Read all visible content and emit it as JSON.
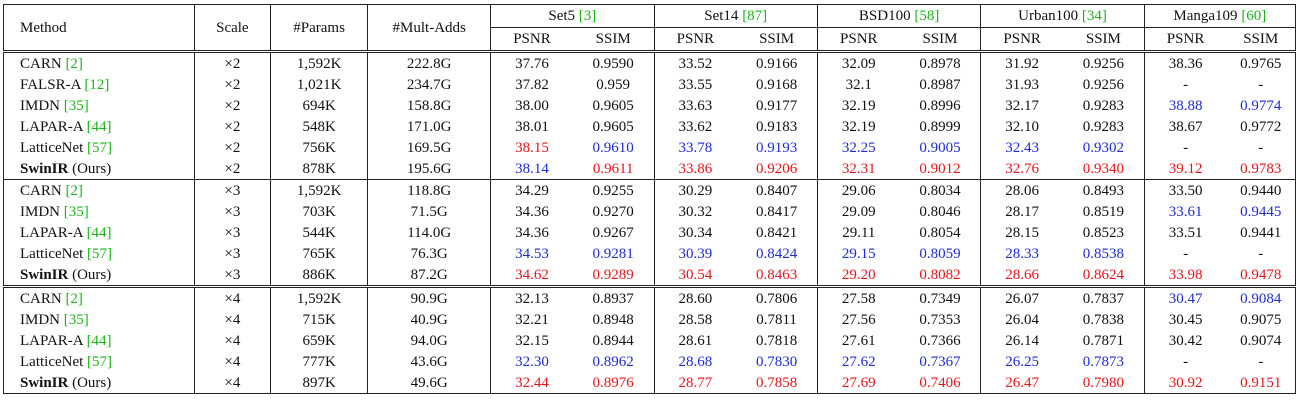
{
  "columns": {
    "method": "Method",
    "scale": "Scale",
    "params": "#Params",
    "mult_adds": "#Mult-Adds",
    "metric_psnr": "PSNR",
    "metric_ssim": "SSIM"
  },
  "datasets": [
    {
      "name": "Set5",
      "ref": "[3]"
    },
    {
      "name": "Set14",
      "ref": "[87]"
    },
    {
      "name": "BSD100",
      "ref": "[58]"
    },
    {
      "name": "Urban100",
      "ref": "[34]"
    },
    {
      "name": "Manga109",
      "ref": "[60]"
    }
  ],
  "colors": {
    "best": "#e8141b",
    "second": "#1f2bd6",
    "citation": "#1ab51a"
  },
  "groups": [
    {
      "rows": [
        {
          "method": "CARN",
          "ref": "[2]",
          "suffix": "",
          "bold": false,
          "scale": "×2",
          "params": "1,592K",
          "madds": "222.8G",
          "vals": [
            [
              "37.76",
              ""
            ],
            [
              "0.9590",
              ""
            ],
            [
              "33.52",
              ""
            ],
            [
              "0.9166",
              ""
            ],
            [
              "32.09",
              ""
            ],
            [
              "0.8978",
              ""
            ],
            [
              "31.92",
              ""
            ],
            [
              "0.9256",
              ""
            ],
            [
              "38.36",
              ""
            ],
            [
              "0.9765",
              ""
            ]
          ]
        },
        {
          "method": "FALSR-A",
          "ref": "[12]",
          "suffix": "",
          "bold": false,
          "scale": "×2",
          "params": "1,021K",
          "madds": "234.7G",
          "vals": [
            [
              "37.82",
              ""
            ],
            [
              "0.959",
              ""
            ],
            [
              "33.55",
              ""
            ],
            [
              "0.9168",
              ""
            ],
            [
              "32.1",
              ""
            ],
            [
              "0.8987",
              ""
            ],
            [
              "31.93",
              ""
            ],
            [
              "0.9256",
              ""
            ],
            [
              "-",
              ""
            ],
            [
              "-",
              ""
            ]
          ]
        },
        {
          "method": "IMDN",
          "ref": "[35]",
          "suffix": "",
          "bold": false,
          "scale": "×2",
          "params": "694K",
          "madds": "158.8G",
          "vals": [
            [
              "38.00",
              ""
            ],
            [
              "0.9605",
              ""
            ],
            [
              "33.63",
              ""
            ],
            [
              "0.9177",
              ""
            ],
            [
              "32.19",
              ""
            ],
            [
              "0.8996",
              ""
            ],
            [
              "32.17",
              ""
            ],
            [
              "0.9283",
              ""
            ],
            [
              "38.88",
              "blue"
            ],
            [
              "0.9774",
              "blue"
            ]
          ]
        },
        {
          "method": "LAPAR-A",
          "ref": "[44]",
          "suffix": "",
          "bold": false,
          "scale": "×2",
          "params": "548K",
          "madds": "171.0G",
          "vals": [
            [
              "38.01",
              ""
            ],
            [
              "0.9605",
              ""
            ],
            [
              "33.62",
              ""
            ],
            [
              "0.9183",
              ""
            ],
            [
              "32.19",
              ""
            ],
            [
              "0.8999",
              ""
            ],
            [
              "32.10",
              ""
            ],
            [
              "0.9283",
              ""
            ],
            [
              "38.67",
              ""
            ],
            [
              "0.9772",
              ""
            ]
          ]
        },
        {
          "method": "LatticeNet",
          "ref": "[57]",
          "suffix": "",
          "bold": false,
          "scale": "×2",
          "params": "756K",
          "madds": "169.5G",
          "vals": [
            [
              "38.15",
              "red"
            ],
            [
              "0.9610",
              "blue"
            ],
            [
              "33.78",
              "blue"
            ],
            [
              "0.9193",
              "blue"
            ],
            [
              "32.25",
              "blue"
            ],
            [
              "0.9005",
              "blue"
            ],
            [
              "32.43",
              "blue"
            ],
            [
              "0.9302",
              "blue"
            ],
            [
              "-",
              ""
            ],
            [
              "-",
              ""
            ]
          ]
        },
        {
          "method": "SwinIR",
          "ref": "",
          "suffix": " (Ours)",
          "bold": true,
          "scale": "×2",
          "params": "878K",
          "madds": "195.6G",
          "vals": [
            [
              "38.14",
              "blue"
            ],
            [
              "0.9611",
              "red"
            ],
            [
              "33.86",
              "red"
            ],
            [
              "0.9206",
              "red"
            ],
            [
              "32.31",
              "red"
            ],
            [
              "0.9012",
              "red"
            ],
            [
              "32.76",
              "red"
            ],
            [
              "0.9340",
              "red"
            ],
            [
              "39.12",
              "red"
            ],
            [
              "0.9783",
              "red"
            ]
          ]
        }
      ]
    },
    {
      "rows": [
        {
          "method": "CARN",
          "ref": "[2]",
          "suffix": "",
          "bold": false,
          "scale": "×3",
          "params": "1,592K",
          "madds": "118.8G",
          "vals": [
            [
              "34.29",
              ""
            ],
            [
              "0.9255",
              ""
            ],
            [
              "30.29",
              ""
            ],
            [
              "0.8407",
              ""
            ],
            [
              "29.06",
              ""
            ],
            [
              "0.8034",
              ""
            ],
            [
              "28.06",
              ""
            ],
            [
              "0.8493",
              ""
            ],
            [
              "33.50",
              ""
            ],
            [
              "0.9440",
              ""
            ]
          ]
        },
        {
          "method": "IMDN",
          "ref": "[35]",
          "suffix": "",
          "bold": false,
          "scale": "×3",
          "params": "703K",
          "madds": "71.5G",
          "vals": [
            [
              "34.36",
              ""
            ],
            [
              "0.9270",
              ""
            ],
            [
              "30.32",
              ""
            ],
            [
              "0.8417",
              ""
            ],
            [
              "29.09",
              ""
            ],
            [
              "0.8046",
              ""
            ],
            [
              "28.17",
              ""
            ],
            [
              "0.8519",
              ""
            ],
            [
              "33.61",
              "blue"
            ],
            [
              "0.9445",
              "blue"
            ]
          ]
        },
        {
          "method": "LAPAR-A",
          "ref": "[44]",
          "suffix": "",
          "bold": false,
          "scale": "×3",
          "params": "544K",
          "madds": "114.0G",
          "vals": [
            [
              "34.36",
              ""
            ],
            [
              "0.9267",
              ""
            ],
            [
              "30.34",
              ""
            ],
            [
              "0.8421",
              ""
            ],
            [
              "29.11",
              ""
            ],
            [
              "0.8054",
              ""
            ],
            [
              "28.15",
              ""
            ],
            [
              "0.8523",
              ""
            ],
            [
              "33.51",
              ""
            ],
            [
              "0.9441",
              ""
            ]
          ]
        },
        {
          "method": "LatticeNet",
          "ref": "[57]",
          "suffix": "",
          "bold": false,
          "scale": "×3",
          "params": "765K",
          "madds": "76.3G",
          "vals": [
            [
              "34.53",
              "blue"
            ],
            [
              "0.9281",
              "blue"
            ],
            [
              "30.39",
              "blue"
            ],
            [
              "0.8424",
              "blue"
            ],
            [
              "29.15",
              "blue"
            ],
            [
              "0.8059",
              "blue"
            ],
            [
              "28.33",
              "blue"
            ],
            [
              "0.8538",
              "blue"
            ],
            [
              "-",
              ""
            ],
            [
              "-",
              ""
            ]
          ]
        },
        {
          "method": "SwinIR",
          "ref": "",
          "suffix": " (Ours)",
          "bold": true,
          "scale": "×3",
          "params": "886K",
          "madds": "87.2G",
          "vals": [
            [
              "34.62",
              "red"
            ],
            [
              "0.9289",
              "red"
            ],
            [
              "30.54",
              "red"
            ],
            [
              "0.8463",
              "red"
            ],
            [
              "29.20",
              "red"
            ],
            [
              "0.8082",
              "red"
            ],
            [
              "28.66",
              "red"
            ],
            [
              "0.8624",
              "red"
            ],
            [
              "33.98",
              "red"
            ],
            [
              "0.9478",
              "red"
            ]
          ]
        }
      ]
    },
    {
      "rows": [
        {
          "method": "CARN",
          "ref": "[2]",
          "suffix": "",
          "bold": false,
          "scale": "×4",
          "params": "1,592K",
          "madds": "90.9G",
          "vals": [
            [
              "32.13",
              ""
            ],
            [
              "0.8937",
              ""
            ],
            [
              "28.60",
              ""
            ],
            [
              "0.7806",
              ""
            ],
            [
              "27.58",
              ""
            ],
            [
              "0.7349",
              ""
            ],
            [
              "26.07",
              ""
            ],
            [
              "0.7837",
              ""
            ],
            [
              "30.47",
              "blue"
            ],
            [
              "0.9084",
              "blue"
            ]
          ]
        },
        {
          "method": "IMDN",
          "ref": "[35]",
          "suffix": "",
          "bold": false,
          "scale": "×4",
          "params": "715K",
          "madds": "40.9G",
          "vals": [
            [
              "32.21",
              ""
            ],
            [
              "0.8948",
              ""
            ],
            [
              "28.58",
              ""
            ],
            [
              "0.7811",
              ""
            ],
            [
              "27.56",
              ""
            ],
            [
              "0.7353",
              ""
            ],
            [
              "26.04",
              ""
            ],
            [
              "0.7838",
              ""
            ],
            [
              "30.45",
              ""
            ],
            [
              "0.9075",
              ""
            ]
          ]
        },
        {
          "method": "LAPAR-A",
          "ref": "[44]",
          "suffix": "",
          "bold": false,
          "scale": "×4",
          "params": "659K",
          "madds": "94.0G",
          "vals": [
            [
              "32.15",
              ""
            ],
            [
              "0.8944",
              ""
            ],
            [
              "28.61",
              ""
            ],
            [
              "0.7818",
              ""
            ],
            [
              "27.61",
              ""
            ],
            [
              "0.7366",
              ""
            ],
            [
              "26.14",
              ""
            ],
            [
              "0.7871",
              ""
            ],
            [
              "30.42",
              ""
            ],
            [
              "0.9074",
              ""
            ]
          ]
        },
        {
          "method": "LatticeNet",
          "ref": "[57]",
          "suffix": "",
          "bold": false,
          "scale": "×4",
          "params": "777K",
          "madds": "43.6G",
          "vals": [
            [
              "32.30",
              "blue"
            ],
            [
              "0.8962",
              "blue"
            ],
            [
              "28.68",
              "blue"
            ],
            [
              "0.7830",
              "blue"
            ],
            [
              "27.62",
              "blue"
            ],
            [
              "0.7367",
              "blue"
            ],
            [
              "26.25",
              "blue"
            ],
            [
              "0.7873",
              "blue"
            ],
            [
              "-",
              ""
            ],
            [
              "-",
              ""
            ]
          ]
        },
        {
          "method": "SwinIR",
          "ref": "",
          "suffix": " (Ours)",
          "bold": true,
          "scale": "×4",
          "params": "897K",
          "madds": "49.6G",
          "vals": [
            [
              "32.44",
              "red"
            ],
            [
              "0.8976",
              "red"
            ],
            [
              "28.77",
              "red"
            ],
            [
              "0.7858",
              "red"
            ],
            [
              "27.69",
              "red"
            ],
            [
              "0.7406",
              "red"
            ],
            [
              "26.47",
              "red"
            ],
            [
              "0.7980",
              "red"
            ],
            [
              "30.92",
              "red"
            ],
            [
              "0.9151",
              "red"
            ]
          ]
        }
      ]
    }
  ]
}
